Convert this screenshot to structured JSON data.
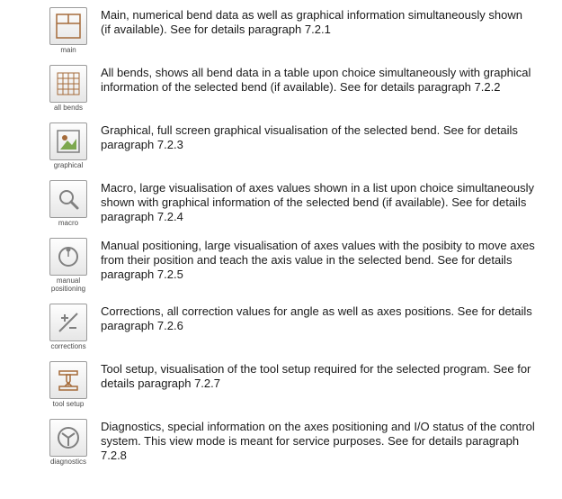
{
  "items": [
    {
      "icon": "main",
      "label": "main",
      "desc": "Main, numerical bend data as well as graphical information simultaneously shown (if available). See for details paragraph 7.2.1"
    },
    {
      "icon": "allbends",
      "label": "all bends",
      "desc": "All bends, shows all bend data in a table upon choice simultaneously with graphical information of the selected bend (if available). See for details paragraph 7.2.2"
    },
    {
      "icon": "graphical",
      "label": "graphical",
      "desc": "Graphical, full screen graphical visualisation of the selected bend. See for details paragraph 7.2.3"
    },
    {
      "icon": "macro",
      "label": "macro",
      "desc": "Macro, large visualisation of axes values shown in a list upon choice simultaneously shown with graphical information of the selected bend (if available). See for details paragraph 7.2.4"
    },
    {
      "icon": "manual",
      "label": "manual positioning",
      "desc": "Manual positioning, large visualisation of axes values with the posibity to move axes from their position and teach the axis value in the selected bend. See for details paragraph 7.2.5"
    },
    {
      "icon": "corrections",
      "label": "corrections",
      "desc": "Corrections, all correction values for angle as well as axes positions. See for details paragraph 7.2.6"
    },
    {
      "icon": "toolsetup",
      "label": "tool setup",
      "desc": "Tool setup, visualisation of the tool setup required for the selected program. See for details paragraph 7.2.7"
    },
    {
      "icon": "diagnostics",
      "label": "diagnostics",
      "desc": "Diagnostics, special information on the axes positioning and I/O status of the control system. This view mode is meant for service purposes. See for details paragraph 7.2.8"
    }
  ],
  "colors": {
    "text": "#1a1a1a",
    "label": "#4a4a4a",
    "border": "#9a9a9a",
    "brown": "#a56b3a",
    "green": "#7da84e",
    "grey": "#808080"
  }
}
